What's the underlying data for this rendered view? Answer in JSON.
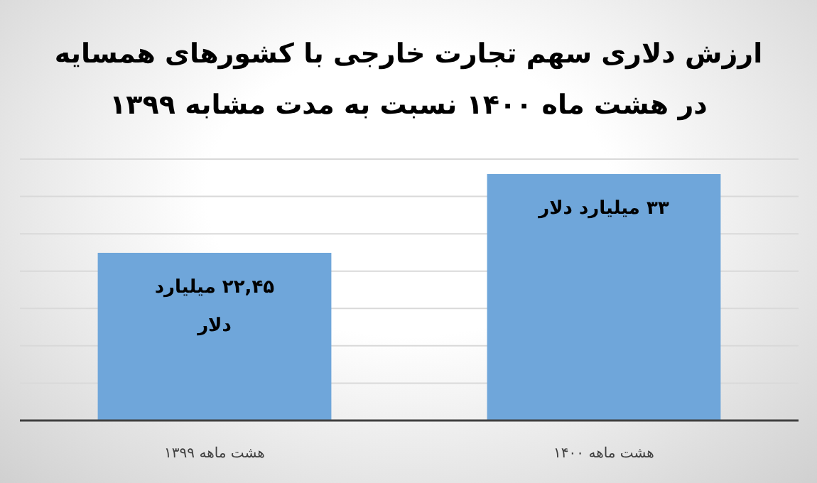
{
  "chart_data": {
    "type": "bar",
    "title": "ارزش دلاری سهم تجارت خارجی با کشورهای همسایه\nدر هشت ماه ۱۴۰۰ نسبت به مدت مشابه ۱۳۹۹",
    "categories": [
      "هشت ماهه ۱۳۹۹",
      "هشت ماهه ۱۴۰۰"
    ],
    "values": [
      22.45,
      33
    ],
    "color": "#6fa6da",
    "value_labels": [
      "۲۲,۴۵ میلیارد دلار",
      "۳۳ میلیارد دلار"
    ],
    "ylim": [
      0,
      35
    ],
    "yticks": [
      {
        "value": 0,
        "label": null
      },
      {
        "value": 5,
        "label": null
      },
      {
        "value": 10,
        "label": null
      },
      {
        "value": 15,
        "label": null
      },
      {
        "value": 20,
        "label": null
      },
      {
        "value": 25,
        "label": null
      },
      {
        "value": 30,
        "label": null
      },
      {
        "value": 35,
        "label": null
      }
    ],
    "grid": "y",
    "tick_labels": "x"
  }
}
